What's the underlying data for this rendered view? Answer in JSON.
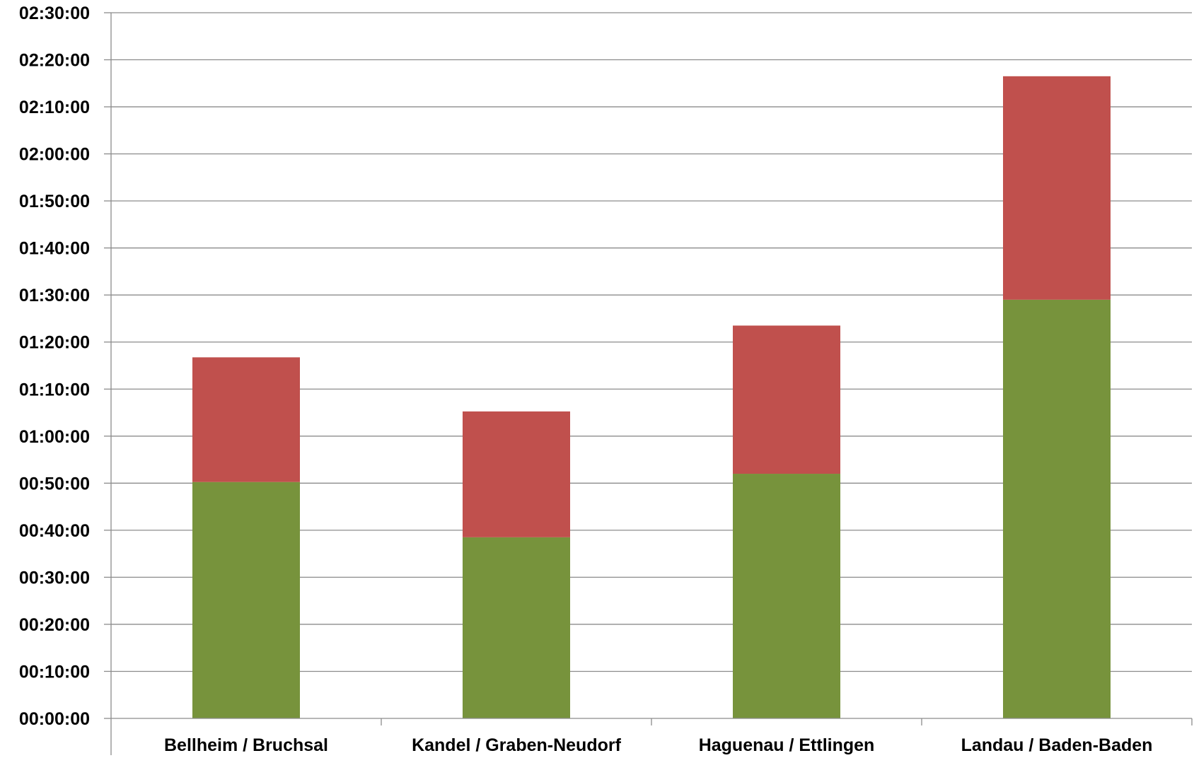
{
  "chart_data": {
    "type": "bar",
    "stacked": true,
    "categories": [
      "Bellheim / Bruchsal",
      "Kandel / Graben-Neudorf",
      "Haguenau / Ettlingen",
      "Landau / Baden-Baden"
    ],
    "series": [
      {
        "color": "#77933c",
        "values": [
          "00:50:15",
          "00:38:30",
          "00:52:00",
          "01:29:00"
        ]
      },
      {
        "color": "#c0504d",
        "values": [
          "00:26:30",
          "00:26:45",
          "00:31:30",
          "00:47:30"
        ]
      }
    ],
    "y_ticks": [
      "00:00:00",
      "00:10:00",
      "00:20:00",
      "00:30:00",
      "00:40:00",
      "00:50:00",
      "01:00:00",
      "01:10:00",
      "01:20:00",
      "01:30:00",
      "01:40:00",
      "01:50:00",
      "02:00:00",
      "02:10:00",
      "02:20:00",
      "02:30:00"
    ],
    "ylim": [
      "00:00:00",
      "02:30:00"
    ],
    "grid": true,
    "legend": "none"
  }
}
